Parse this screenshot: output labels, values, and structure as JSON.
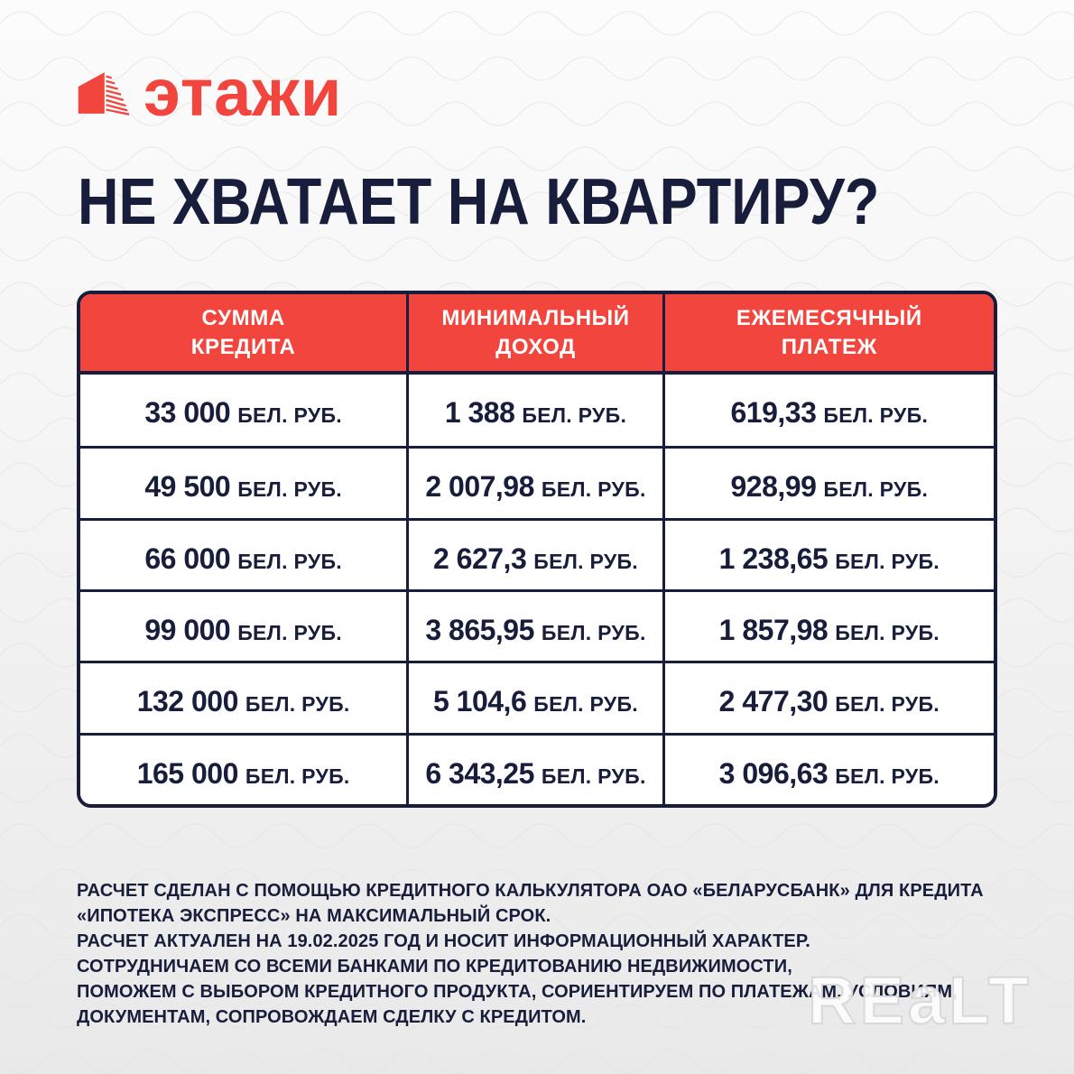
{
  "colors": {
    "red": "#F2453D",
    "navy": "#171D3B",
    "cell_bg": "#FFFFFF"
  },
  "logo": {
    "brand": "этажи"
  },
  "heading": {
    "title": "НЕ ХВАТАЕТ НА КВАРТИРУ?"
  },
  "table": {
    "unit": "БЕЛ. РУБ.",
    "headers": [
      {
        "line1": "СУММА",
        "line2": "КРЕДИТА"
      },
      {
        "line1": "МИНИМАЛЬНЫЙ",
        "line2": "ДОХОД"
      },
      {
        "line1": "ЕЖЕМЕСЯЧНЫЙ",
        "line2": "ПЛАТЕЖ"
      }
    ],
    "rows": [
      {
        "credit": "33 000",
        "income": "1 388",
        "payment": "619,33"
      },
      {
        "credit": "49 500",
        "income": "2 007,98",
        "payment": "928,99"
      },
      {
        "credit": "66 000",
        "income": "2 627,3",
        "payment": "1 238,65"
      },
      {
        "credit": "99 000",
        "income": "3 865,95",
        "payment": "1 857,98"
      },
      {
        "credit": "132 000",
        "income": "5 104,6",
        "payment": "2 477,30"
      },
      {
        "credit": "165 000",
        "income": "6 343,25",
        "payment": "3 096,63"
      }
    ]
  },
  "chart_data": {
    "type": "table",
    "title": "НЕ ХВАТАЕТ НА КВАРТИРУ?",
    "columns": [
      "СУММА КРЕДИТА",
      "МИНИМАЛЬНЫЙ ДОХОД",
      "ЕЖЕМЕСЯЧНЫЙ ПЛАТЕЖ"
    ],
    "unit": "БЕЛ. РУБ.",
    "credit_sums": [
      33000,
      49500,
      66000,
      99000,
      132000,
      165000
    ],
    "min_incomes": [
      1388,
      2007.98,
      2627.3,
      3865.95,
      5104.6,
      6343.25
    ],
    "monthly_payments": [
      619.33,
      928.99,
      1238.65,
      1857.98,
      2477.3,
      3096.63
    ]
  },
  "disclaimer": {
    "line1": "РАСЧЕТ СДЕЛАН С ПОМОЩЬЮ КРЕДИТНОГО КАЛЬКУЛЯТОРА ОАО «БЕЛАРУСБАНК» ДЛЯ КРЕДИТА",
    "line2": "«ИПОТЕКА ЭКСПРЕСС» НА МАКСИМАЛЬНЫЙ СРОК.",
    "line3": "РАСЧЕТ АКТУАЛЕН НА 19.02.2025 ГОД И НОСИТ ИНФОРМАЦИОННЫЙ ХАРАКТЕР.",
    "line4": "СОТРУДНИЧАЕМ СО ВСЕМИ БАНКАМИ ПО КРЕДИТОВАНИЮ НЕДВИЖИМОСТИ,",
    "line5": "ПОМОЖЕМ С ВЫБОРОМ КРЕДИТНОГО ПРОДУКТА, СОРИЕНТИРУЕМ ПО ПЛАТЕЖАМ, УСЛОВИЯМ,",
    "line6": "ДОКУМЕНТАМ, СОПРОВОЖДАЕМ СДЕЛКУ С КРЕДИТОМ."
  },
  "watermark": {
    "text": "REaLT"
  }
}
